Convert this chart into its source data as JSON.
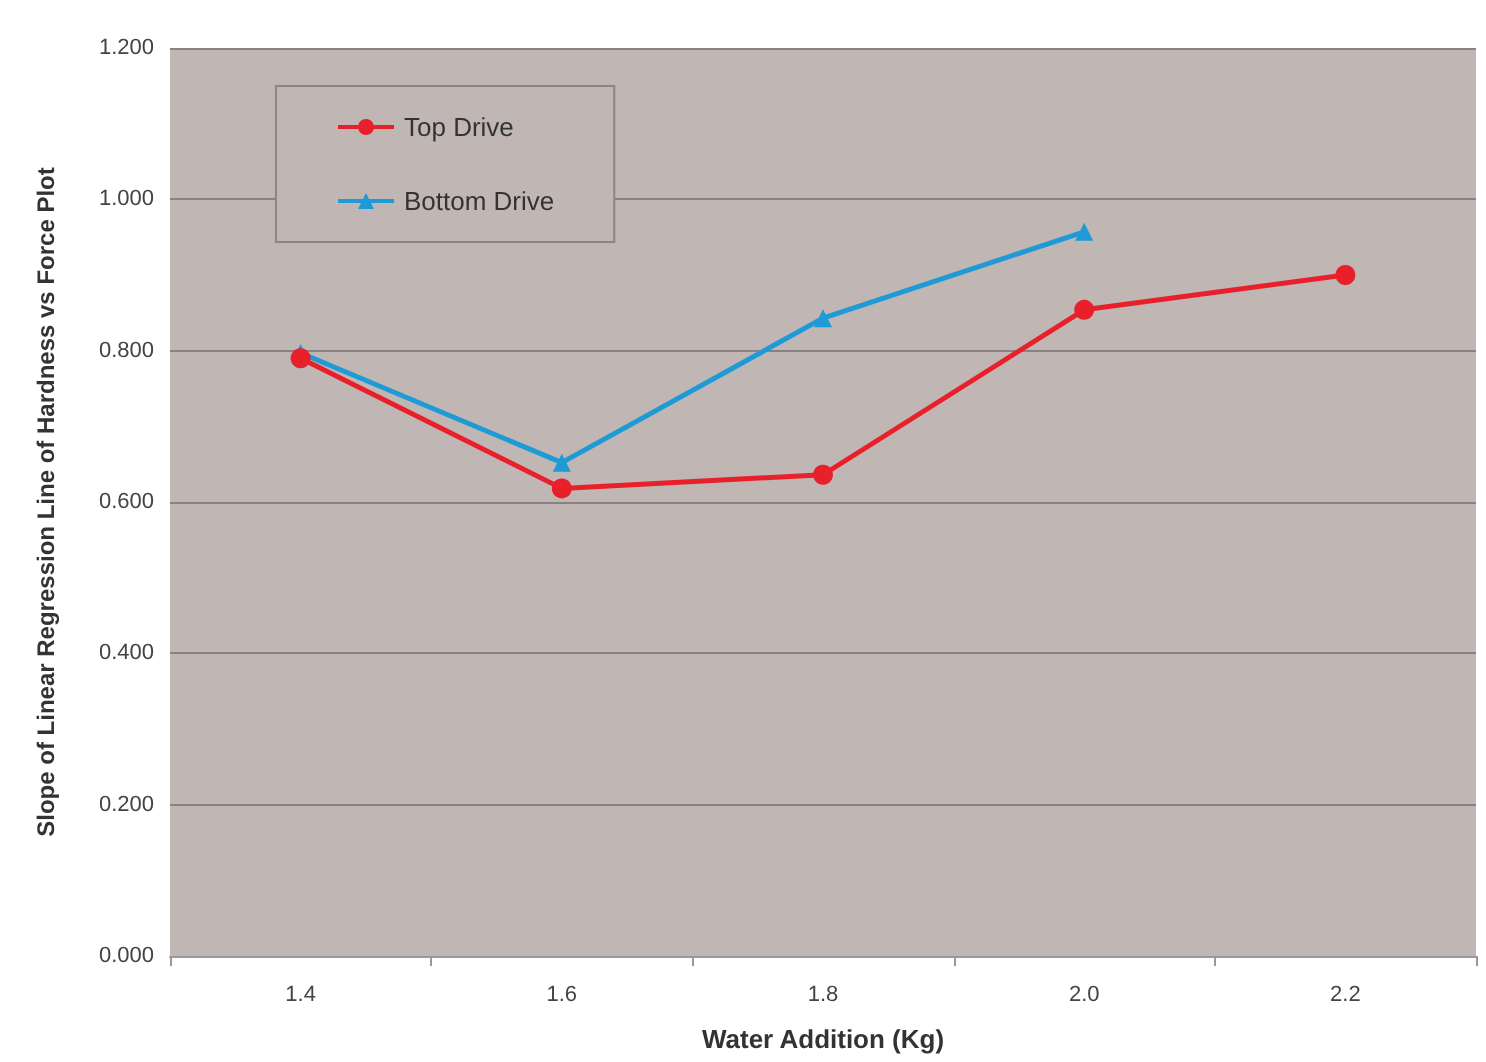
{
  "chart_data": {
    "type": "line",
    "xlabel": "Water Addition (Kg)",
    "ylabel": "Slope of Linear Regression Line of Hardness vs Force Plot",
    "categories": [
      "1.4",
      "1.6",
      "1.8",
      "2.0",
      "2.2"
    ],
    "series": [
      {
        "name": "Top Drive",
        "color": "#e8202a",
        "marker": "circle",
        "values": [
          0.79,
          0.618,
          0.636,
          0.854,
          0.9
        ]
      },
      {
        "name": "Bottom Drive",
        "color": "#1e9ad6",
        "marker": "triangle",
        "values": [
          0.797,
          0.652,
          0.843,
          0.957,
          null
        ]
      }
    ],
    "ylim": [
      0,
      1.2
    ],
    "yticks": [
      {
        "value": 0,
        "label": "0.000"
      },
      {
        "value": 0.2,
        "label": "0.200"
      },
      {
        "value": 0.4,
        "label": "0.400"
      },
      {
        "value": 0.6,
        "label": "0.600"
      },
      {
        "value": 0.8,
        "label": "0.800"
      },
      {
        "value": 1.0,
        "label": "1.000"
      },
      {
        "value": 1.2,
        "label": "1.200"
      }
    ],
    "grid": "y",
    "legend": "top left",
    "line_style": "solid"
  }
}
